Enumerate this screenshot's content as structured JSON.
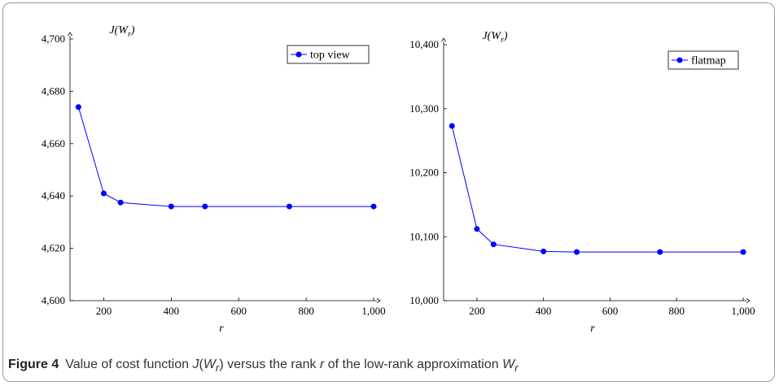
{
  "caption": {
    "figure_label": "Figure 4",
    "text_before": "Value of cost function ",
    "j_symbol": "J",
    "open_paren": "(",
    "w_symbol": "W",
    "subscript": "r",
    "text_middle": ") versus the rank ",
    "r_symbol": "r",
    "text_after": " of the low-rank approximation ",
    "w2_symbol": "W",
    "subscript2": "r"
  },
  "colors": {
    "series": "#0000ff",
    "axis": "#000000",
    "frame": "#9a9a9a"
  },
  "chart_data": [
    {
      "type": "line",
      "ylabel": "J(W_r)",
      "xlabel": "r",
      "xlim": [
        100,
        1000
      ],
      "ylim": [
        4600,
        4700
      ],
      "x_ticks": [
        "200",
        "400",
        "600",
        "800",
        "1,000"
      ],
      "y_ticks": [
        "4,600",
        "4,620",
        "4,640",
        "4,660",
        "4,680",
        "4,700"
      ],
      "legend_position": "top-right",
      "series": [
        {
          "name": "top view",
          "x": [
            125,
            200,
            250,
            400,
            500,
            750,
            1000
          ],
          "y": [
            4674,
            4641,
            4637.5,
            4636,
            4636,
            4636,
            4636
          ]
        }
      ]
    },
    {
      "type": "line",
      "ylabel": "J(W_r)",
      "xlabel": "r",
      "xlim": [
        100,
        1000
      ],
      "ylim": [
        10000,
        10400
      ],
      "x_ticks": [
        "200",
        "400",
        "600",
        "800",
        "1,000"
      ],
      "y_ticks": [
        "10,000",
        "10,100",
        "10,200",
        "10,300",
        "10,400"
      ],
      "legend_position": "top-right",
      "series": [
        {
          "name": "flatmap",
          "x": [
            125,
            200,
            250,
            400,
            500,
            750,
            1000
          ],
          "y": [
            10273,
            10112,
            10088,
            10077,
            10076,
            10076,
            10076
          ]
        }
      ]
    }
  ]
}
